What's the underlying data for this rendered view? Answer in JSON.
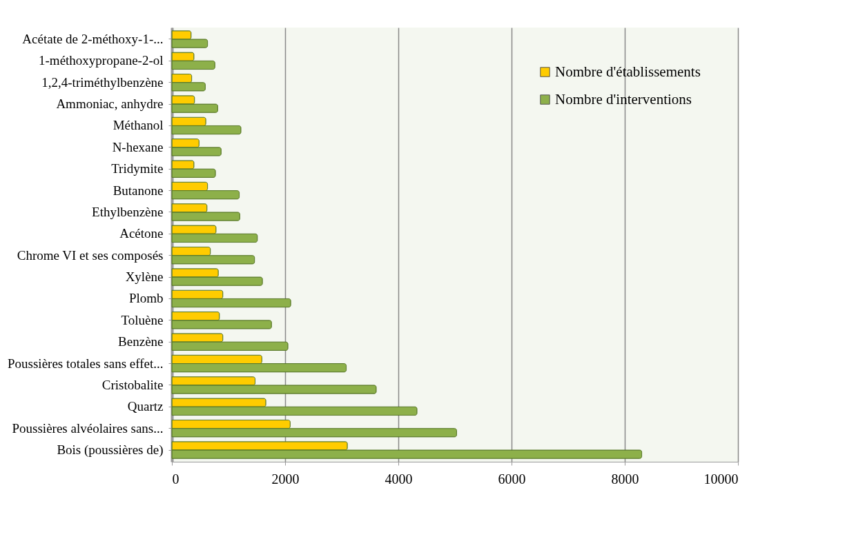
{
  "chart_data": {
    "type": "bar",
    "orientation": "horizontal",
    "categories": [
      "Acétate de 2-méthoxy-1-...",
      "1-méthoxypropane-2-ol",
      "1,2,4-triméthylbenzène",
      "Ammoniac, anhydre",
      "Méthanol",
      "N-hexane",
      "Tridymite",
      "Butanone",
      "Ethylbenzène",
      "Acétone",
      "Chrome VI et ses composés",
      "Xylène",
      "Plomb",
      "Toluène",
      "Benzène",
      "Poussières totales sans effet...",
      "Cristobalite",
      "Quartz",
      "Poussières alvéolaires sans...",
      "Bois (poussières de)"
    ],
    "series": [
      {
        "name": "Nombre d'établissements",
        "color": "#ffcc00",
        "values": [
          340,
          390,
          350,
          400,
          600,
          480,
          390,
          630,
          620,
          780,
          680,
          820,
          900,
          840,
          900,
          1590,
          1470,
          1660,
          2090,
          3100
        ]
      },
      {
        "name": "Nombre d'interventions",
        "color": "#8db04a",
        "values": [
          630,
          760,
          590,
          810,
          1220,
          870,
          770,
          1190,
          1200,
          1510,
          1460,
          1600,
          2100,
          1760,
          2050,
          3080,
          3610,
          4330,
          5030,
          8300
        ]
      }
    ],
    "xlim": [
      0,
      10000
    ],
    "xticks": [
      0,
      2000,
      4000,
      6000,
      8000,
      10000
    ],
    "grid": "x",
    "legend": "top right"
  }
}
